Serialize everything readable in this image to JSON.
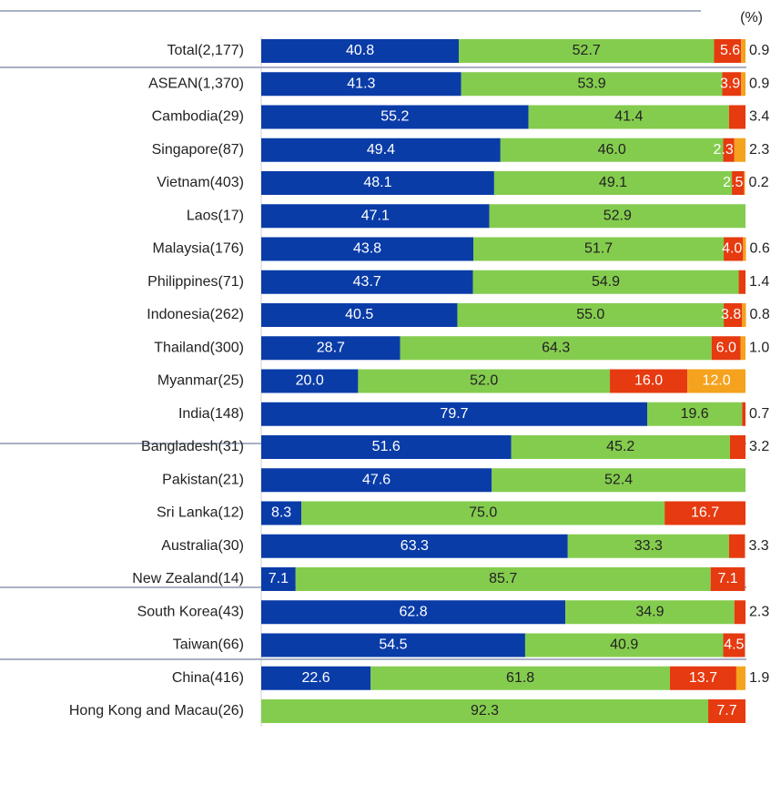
{
  "chart_data": {
    "type": "stacked-bar-horizontal",
    "unit_label": "(%)",
    "categories": [
      "Total(2,177)",
      "ASEAN(1,370)",
      "Cambodia(29)",
      "Singapore(87)",
      "Vietnam(403)",
      "Laos(17)",
      "Malaysia(176)",
      "Philippines(71)",
      "Indonesia(262)",
      "Thailand(300)",
      "Myanmar(25)",
      "India(148)",
      "Bangladesh(31)",
      "Pakistan(21)",
      "Sri Lanka(12)",
      "Australia(30)",
      "New Zealand(14)",
      "South Korea(43)",
      "Taiwan(66)",
      "China(416)",
      "Hong Kong and Macau(26)"
    ],
    "xlim": [
      0,
      100
    ],
    "series": [
      {
        "color": "#0a3ca8",
        "label_color": "#ffffff",
        "values": [
          40.8,
          41.3,
          55.2,
          49.4,
          48.1,
          47.1,
          43.8,
          43.7,
          40.5,
          28.7,
          20.0,
          79.7,
          51.6,
          47.6,
          8.3,
          63.3,
          7.1,
          62.8,
          54.5,
          22.6,
          null
        ]
      },
      {
        "color": "#84cc4e",
        "label_color": "#222222",
        "values": [
          52.7,
          53.9,
          41.4,
          46.0,
          49.1,
          52.9,
          51.7,
          54.9,
          55.0,
          64.3,
          52.0,
          19.6,
          45.2,
          52.4,
          75.0,
          33.3,
          85.7,
          34.9,
          40.9,
          61.8,
          92.3
        ]
      },
      {
        "color": "#e63a10",
        "label_color": "#ffffff",
        "values": [
          5.6,
          3.9,
          3.4,
          2.3,
          2.5,
          null,
          4.0,
          1.4,
          3.8,
          6.0,
          16.0,
          0.7,
          3.2,
          null,
          16.7,
          3.3,
          7.1,
          2.3,
          4.5,
          13.7,
          7.7
        ]
      },
      {
        "color": "#f5a21e",
        "label_color": "#ffffff",
        "values": [
          0.9,
          0.9,
          null,
          2.3,
          0.2,
          null,
          0.6,
          null,
          0.8,
          1.0,
          12.0,
          null,
          null,
          null,
          null,
          null,
          null,
          null,
          null,
          1.9,
          null
        ]
      }
    ],
    "value_labels": [
      [
        "40.8",
        "41.3",
        "55.2",
        "49.4",
        "48.1",
        "47.1",
        "43.8",
        "43.7",
        "40.5",
        "28.7",
        "20.0",
        "79.7",
        "51.6",
        "47.6",
        "8.3",
        "63.3",
        "7.1",
        "62.8",
        "54.5",
        "22.6",
        null
      ],
      [
        "52.7",
        "53.9",
        "41.4",
        "46.0",
        "49.1",
        "52.9",
        "51.7",
        "54.9",
        "55.0",
        "64.3",
        "52.0",
        "19.6",
        "45.2",
        "52.4",
        "75.0",
        "33.3",
        "85.7",
        "34.9",
        "40.9",
        "61.8",
        "92.3"
      ],
      [
        "5.6",
        "3.9",
        "3.4",
        "2.3",
        "2.5",
        null,
        "4.0",
        "1.4",
        "3.8",
        "6.0",
        "16.0",
        "0.7",
        "3.2",
        null,
        "16.7",
        "3.3",
        "7.1",
        "2.3",
        "4.5",
        "13.7",
        "7.7"
      ],
      [
        "0.9",
        "0.9",
        null,
        "2.3",
        "0.2",
        null,
        "0.6",
        null,
        "0.8",
        "1.0",
        "12.0",
        null,
        null,
        null,
        null,
        null,
        null,
        null,
        null,
        "1.9",
        null
      ]
    ]
  }
}
